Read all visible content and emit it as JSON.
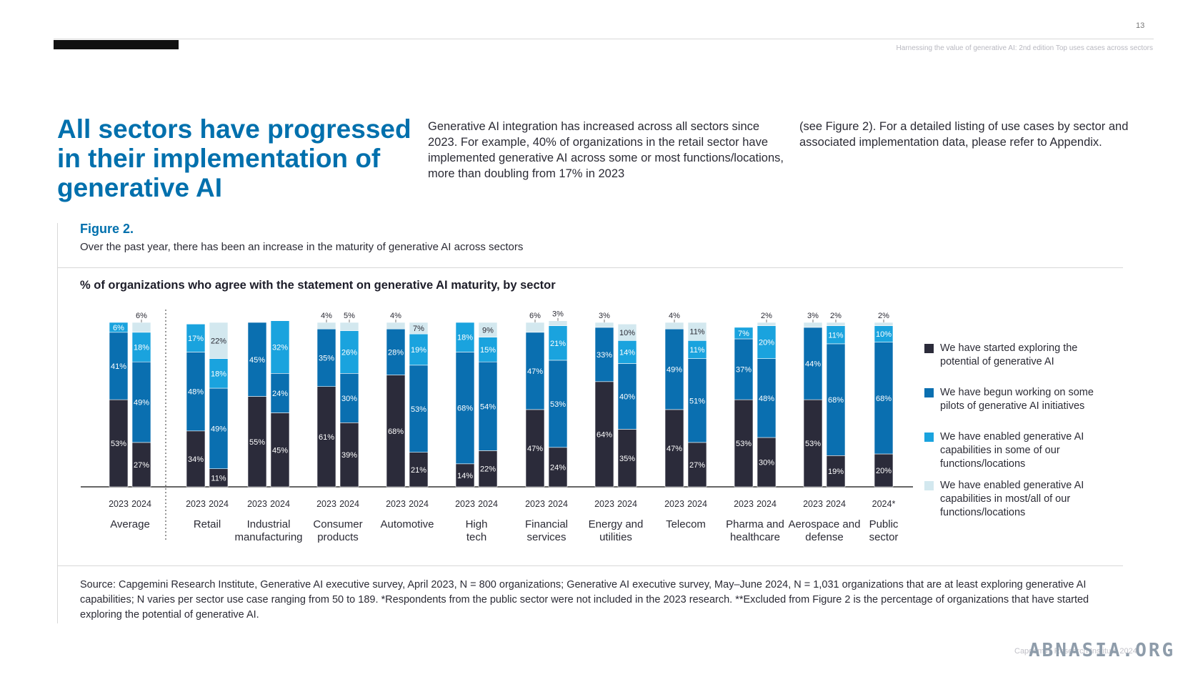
{
  "header": {
    "page_number": "13",
    "running_head": "Harnessing the value of generative AI: 2nd edition Top uses cases across sectors"
  },
  "main": {
    "title": "All sectors have progressed in their implementation of generative AI",
    "intro_col1": "Generative AI integration has increased across all sectors since 2023. For example, 40% of organizations in the retail sector have implemented generative AI across some or most functions/locations, more than doubling from 17% in 2023",
    "intro_col2": "(see Figure 2). For a detailed listing of use cases by sector and associated implementation data, please refer to Appendix."
  },
  "figure": {
    "label": "Figure 2.",
    "subtitle": "Over the past year, there has been an increase in the maturity of generative AI across sectors",
    "source": "Source: Capgemini Research Institute, Generative AI executive survey, April 2023, N = 800 organizations; Generative AI executive survey, May–June 2024, N = 1,031 organizations that are at least exploring generative AI capabilities; N varies per sector use case ranging from 50 to 189. *Respondents from the public sector were not included in the 2023 research. **Excluded from Figure 2 is the percentage of organizations that have started exploring the potential of generative AI."
  },
  "footer": {
    "text": "Capgemini Research Institute 2024"
  },
  "watermark": {
    "text": "ABNASIA.ORG"
  },
  "chart_data": {
    "type": "bar",
    "stacked": true,
    "title": "% of organizations who agree with the statement on generative AI maturity, by sector",
    "ylim": [
      0,
      100
    ],
    "legend_position": "right",
    "colors": [
      "#2b2b3a",
      "#0a6fb0",
      "#1aa3de",
      "#d3e8ef"
    ],
    "series_names": [
      "We have started exploring the potential of generative AI",
      "We have begun working on some pilots of generative AI initiatives",
      "We have enabled generative AI capabilities in some of our functions/locations",
      "We have enabled generative AI capabilities in most/all of our functions/locations"
    ],
    "groups": [
      {
        "label": "Average",
        "bars": [
          {
            "year": "2023",
            "values": [
              53,
              41,
              6,
              0
            ]
          },
          {
            "year": "2024",
            "values": [
              27,
              49,
              18,
              6
            ]
          }
        ]
      },
      {
        "label": "Retail",
        "bars": [
          {
            "year": "2023",
            "values": [
              34,
              48,
              17,
              0
            ]
          },
          {
            "year": "2024",
            "values": [
              11,
              49,
              18,
              22
            ]
          }
        ]
      },
      {
        "label": "Industrial manufacturing",
        "bars": [
          {
            "year": "2023",
            "values": [
              55,
              45,
              0,
              0
            ]
          },
          {
            "year": "2024",
            "values": [
              45,
              24,
              32,
              0
            ]
          }
        ]
      },
      {
        "label": "Consumer products",
        "bars": [
          {
            "year": "2023",
            "values": [
              61,
              35,
              0,
              4
            ]
          },
          {
            "year": "2024",
            "values": [
              39,
              30,
              26,
              5
            ]
          }
        ]
      },
      {
        "label": "Automotive",
        "bars": [
          {
            "year": "2023",
            "values": [
              68,
              28,
              0,
              4
            ]
          },
          {
            "year": "2024",
            "values": [
              21,
              53,
              19,
              7
            ]
          }
        ]
      },
      {
        "label": "High tech",
        "bars": [
          {
            "year": "2023",
            "values": [
              14,
              68,
              18,
              0
            ]
          },
          {
            "year": "2024",
            "values": [
              22,
              54,
              15,
              9
            ]
          }
        ]
      },
      {
        "label": "Financial services",
        "bars": [
          {
            "year": "2023",
            "values": [
              47,
              47,
              0,
              6
            ]
          },
          {
            "year": "2024",
            "values": [
              24,
              53,
              21,
              3
            ]
          }
        ]
      },
      {
        "label": "Energy and utilities",
        "bars": [
          {
            "year": "2023",
            "values": [
              64,
              33,
              0,
              3
            ]
          },
          {
            "year": "2024",
            "values": [
              35,
              40,
              14,
              10
            ]
          }
        ]
      },
      {
        "label": "Telecom",
        "bars": [
          {
            "year": "2023",
            "values": [
              47,
              49,
              0,
              4
            ]
          },
          {
            "year": "2024",
            "values": [
              27,
              51,
              11,
              11
            ]
          }
        ]
      },
      {
        "label": "Pharma and healthcare",
        "bars": [
          {
            "year": "2023",
            "values": [
              53,
              37,
              7,
              0
            ]
          },
          {
            "year": "2024",
            "values": [
              30,
              48,
              20,
              2
            ]
          }
        ]
      },
      {
        "label": "Aerospace and defense",
        "bars": [
          {
            "year": "2023",
            "values": [
              53,
              44,
              0,
              3
            ]
          },
          {
            "year": "2024",
            "values": [
              19,
              68,
              11,
              2
            ]
          }
        ]
      },
      {
        "label": "Public sector",
        "bars": [
          {
            "year": "2024*",
            "values": [
              20,
              68,
              10,
              2
            ]
          }
        ]
      }
    ]
  }
}
